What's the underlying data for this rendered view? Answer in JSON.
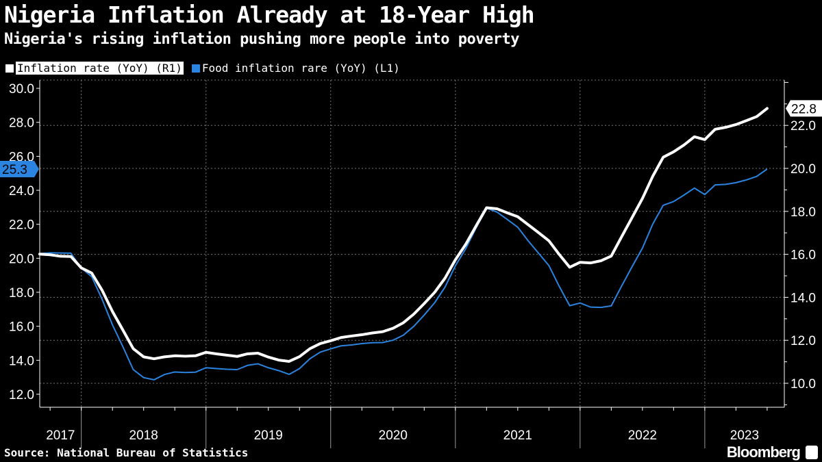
{
  "chart_data": {
    "type": "line",
    "title": "Nigeria Inflation Already at 18-Year High",
    "subtitle": "Nigeria's rising inflation pushing more people into poverty",
    "source": "Source: National Bureau of Statistics",
    "brand": "Bloomberg",
    "x_start": "2017-08",
    "x_end": "2023-06",
    "x_frequency": "monthly",
    "x_tick_labels": [
      "2017",
      "2018",
      "2019",
      "2020",
      "2021",
      "2022",
      "2023"
    ],
    "left_axis": {
      "ylim": [
        11,
        30.5
      ],
      "ticks": [
        "12.0",
        "14.0",
        "16.0",
        "18.0",
        "20.0",
        "22.0",
        "24.0",
        "26.0",
        "28.0",
        "30.0"
      ]
    },
    "right_axis": {
      "ylim": [
        9,
        24.2
      ],
      "ticks": [
        "10.0",
        "12.0",
        "14.0",
        "16.0",
        "18.0",
        "20.0",
        "22.0"
      ]
    },
    "grid": true,
    "legend_position": "top-left",
    "series": [
      {
        "name": "Inflation rate (YoY) (R1)",
        "axis": "right",
        "color": "#ffffff",
        "last_label": "22.8",
        "values": [
          16.01,
          15.98,
          15.91,
          15.9,
          15.37,
          15.13,
          14.33,
          13.34,
          12.48,
          11.61,
          11.23,
          11.14,
          11.23,
          11.28,
          11.26,
          11.28,
          11.44,
          11.37,
          11.31,
          11.25,
          11.37,
          11.4,
          11.22,
          11.08,
          11.02,
          11.24,
          11.61,
          11.85,
          11.98,
          12.13,
          12.2,
          12.26,
          12.34,
          12.4,
          12.56,
          12.82,
          13.22,
          13.71,
          14.23,
          14.89,
          15.75,
          16.47,
          17.33,
          18.17,
          18.12,
          17.93,
          17.75,
          17.38,
          17.01,
          16.63,
          15.99,
          15.4,
          15.63,
          15.6,
          15.7,
          15.92,
          16.82,
          17.71,
          18.6,
          19.64,
          20.52,
          20.77,
          21.09,
          21.47,
          21.34,
          21.82,
          21.91,
          22.04,
          22.22,
          22.41,
          22.79
        ]
      },
      {
        "name": "Food inflation rare (YoY) (L1)",
        "axis": "left",
        "color": "#2a84e0",
        "last_label": "25.3",
        "values": [
          20.28,
          20.32,
          20.31,
          20.3,
          19.42,
          18.92,
          17.59,
          16.08,
          14.8,
          13.45,
          12.98,
          12.85,
          13.16,
          13.31,
          13.28,
          13.3,
          13.56,
          13.51,
          13.47,
          13.45,
          13.7,
          13.79,
          13.56,
          13.39,
          13.17,
          13.51,
          14.09,
          14.48,
          14.67,
          14.85,
          14.9,
          14.98,
          15.03,
          15.04,
          15.18,
          15.48,
          16.0,
          16.66,
          17.38,
          18.3,
          19.56,
          20.57,
          21.79,
          22.95,
          22.72,
          22.28,
          21.83,
          21.03,
          20.3,
          19.57,
          18.34,
          17.21,
          17.37,
          17.13,
          17.11,
          17.2,
          18.37,
          19.5,
          20.6,
          22.02,
          23.12,
          23.34,
          23.72,
          24.13,
          23.75,
          24.32,
          24.35,
          24.45,
          24.61,
          24.82,
          25.25
        ]
      }
    ]
  }
}
